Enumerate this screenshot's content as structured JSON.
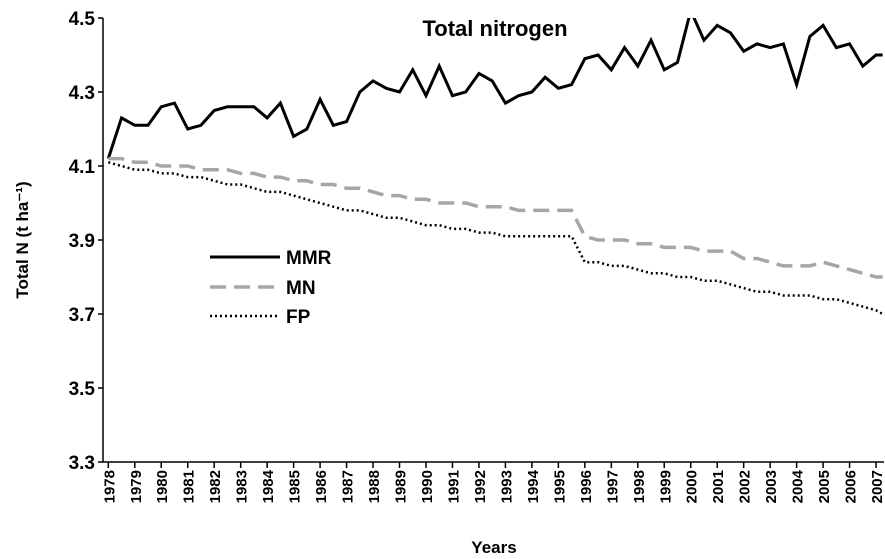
{
  "chart_data": {
    "type": "line",
    "title": "Total nitrogen",
    "xlabel": "Years",
    "ylabel": "Total N (t ha⁻¹)",
    "x": [
      1978,
      1978.5,
      1979,
      1979.5,
      1980,
      1980.5,
      1981,
      1981.5,
      1982,
      1982.5,
      1983,
      1983.5,
      1984,
      1984.5,
      1985,
      1985.5,
      1986,
      1986.5,
      1987,
      1987.5,
      1988,
      1988.5,
      1989,
      1989.5,
      1990,
      1990.5,
      1991,
      1991.5,
      1992,
      1992.5,
      1993,
      1993.5,
      1994,
      1994.5,
      1995,
      1995.5,
      1996,
      1996.5,
      1997,
      1997.5,
      1998,
      1998.5,
      1999,
      1999.5,
      2000,
      2000.5,
      2001,
      2001.5,
      2002,
      2002.5,
      2003,
      2003.5,
      2004,
      2004.5,
      2005,
      2005.5,
      2006,
      2006.5,
      2007,
      2007.25
    ],
    "series": [
      {
        "name": "MMR",
        "color": "#000000",
        "style": "solid",
        "values": [
          4.12,
          4.23,
          4.21,
          4.21,
          4.26,
          4.27,
          4.2,
          4.21,
          4.25,
          4.26,
          4.26,
          4.26,
          4.23,
          4.27,
          4.18,
          4.2,
          4.28,
          4.21,
          4.22,
          4.3,
          4.33,
          4.31,
          4.3,
          4.36,
          4.29,
          4.37,
          4.29,
          4.3,
          4.35,
          4.33,
          4.27,
          4.29,
          4.3,
          4.34,
          4.31,
          4.32,
          4.39,
          4.4,
          4.36,
          4.42,
          4.37,
          4.44,
          4.36,
          4.38,
          4.52,
          4.44,
          4.48,
          4.46,
          4.41,
          4.43,
          4.42,
          4.43,
          4.32,
          4.45,
          4.48,
          4.42,
          4.43,
          4.37,
          4.4,
          4.4
        ]
      },
      {
        "name": "MN",
        "color": "#a6a6a6",
        "style": "dashed",
        "values": [
          4.12,
          4.12,
          4.11,
          4.11,
          4.1,
          4.1,
          4.1,
          4.09,
          4.09,
          4.09,
          4.08,
          4.08,
          4.07,
          4.07,
          4.06,
          4.06,
          4.05,
          4.05,
          4.04,
          4.04,
          4.03,
          4.02,
          4.02,
          4.01,
          4.01,
          4.0,
          4.0,
          4.0,
          3.99,
          3.99,
          3.99,
          3.98,
          3.98,
          3.98,
          3.98,
          3.98,
          3.91,
          3.9,
          3.9,
          3.9,
          3.89,
          3.89,
          3.88,
          3.88,
          3.88,
          3.87,
          3.87,
          3.87,
          3.85,
          3.85,
          3.84,
          3.83,
          3.83,
          3.83,
          3.84,
          3.83,
          3.82,
          3.81,
          3.8,
          3.8
        ]
      },
      {
        "name": "FP",
        "color": "#000000",
        "style": "dotted",
        "values": [
          4.11,
          4.1,
          4.09,
          4.09,
          4.08,
          4.08,
          4.07,
          4.07,
          4.06,
          4.05,
          4.05,
          4.04,
          4.03,
          4.03,
          4.02,
          4.01,
          4.0,
          3.99,
          3.98,
          3.98,
          3.97,
          3.96,
          3.96,
          3.95,
          3.94,
          3.94,
          3.93,
          3.93,
          3.92,
          3.92,
          3.91,
          3.91,
          3.91,
          3.91,
          3.91,
          3.91,
          3.84,
          3.84,
          3.83,
          3.83,
          3.82,
          3.81,
          3.81,
          3.8,
          3.8,
          3.79,
          3.79,
          3.78,
          3.77,
          3.76,
          3.76,
          3.75,
          3.75,
          3.75,
          3.74,
          3.74,
          3.73,
          3.72,
          3.71,
          3.7
        ]
      }
    ],
    "xlim": [
      1977.8,
      2007.3
    ],
    "xticks": [
      1978,
      1979,
      1980,
      1981,
      1982,
      1983,
      1984,
      1985,
      1986,
      1987,
      1988,
      1989,
      1990,
      1991,
      1992,
      1993,
      1994,
      1995,
      1996,
      1997,
      1998,
      1999,
      2000,
      2001,
      2002,
      2003,
      2004,
      2005,
      2006,
      2007
    ],
    "ylim": [
      3.3,
      4.5
    ],
    "yticks": [
      3.3,
      3.5,
      3.7,
      3.9,
      4.1,
      4.3,
      4.5
    ],
    "grid": false,
    "legend": "center left"
  }
}
